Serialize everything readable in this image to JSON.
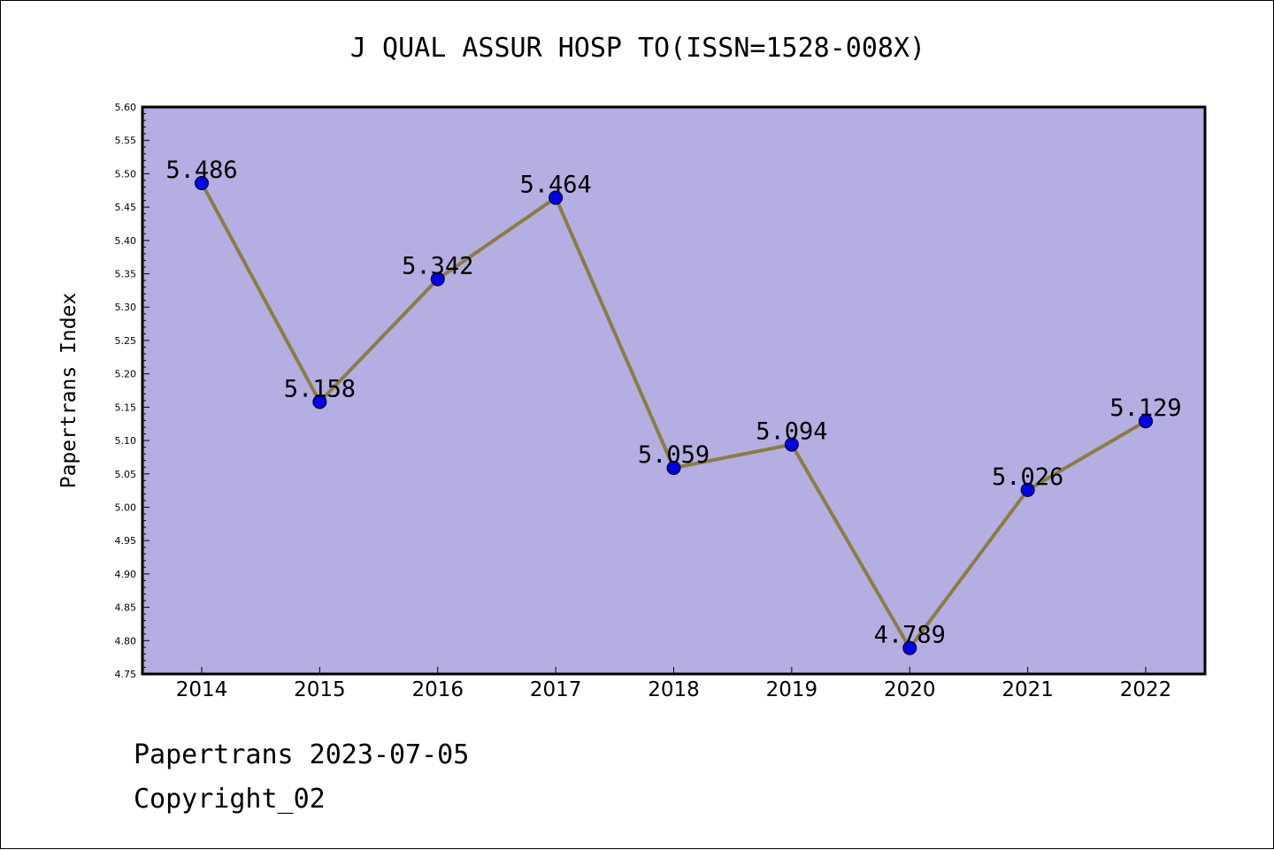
{
  "colors": {
    "plot_background": "#b4aee2",
    "line": "#8b7d3f",
    "marker_fill": "#0000ee",
    "text": "#000000"
  },
  "footer": {
    "source_label": "Papertrans 2023-07-05",
    "copyright_label": "Copyright_02"
  },
  "chart_data": {
    "type": "line",
    "title": "J QUAL ASSUR HOSP TO(ISSN=1528-008X)",
    "xlabel": "",
    "ylabel": "Papertrans Index",
    "categories": [
      "2014",
      "2015",
      "2016",
      "2017",
      "2018",
      "2019",
      "2020",
      "2021",
      "2022"
    ],
    "series": [
      {
        "values": [
          5.486,
          5.158,
          5.342,
          5.464,
          5.059,
          5.094,
          4.789,
          5.026,
          5.129
        ],
        "data_labels": [
          "5.486",
          "5.158",
          "5.342",
          "5.464",
          "5.059",
          "5.094",
          "4.789",
          "5.026",
          "5.129"
        ]
      }
    ],
    "ylim": [
      4.75,
      5.6
    ],
    "y_ticks": [
      "4.75",
      "4.80",
      "4.85",
      "4.90",
      "4.95",
      "5.00",
      "5.05",
      "5.10",
      "5.15",
      "5.20",
      "5.25",
      "5.30",
      "5.35",
      "5.40",
      "5.45",
      "5.50",
      "5.55",
      "5.60"
    ],
    "grid": false,
    "legend": "none"
  }
}
